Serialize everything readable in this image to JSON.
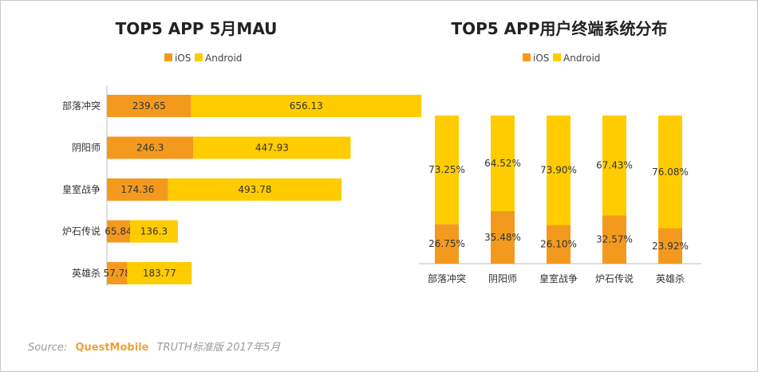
{
  "colors": {
    "ios": "#f39a1e",
    "android": "#ffcc00"
  },
  "chart_data": [
    {
      "type": "bar",
      "orientation": "horizontal",
      "stacked": true,
      "title": "TOP5 APP 5月MAU",
      "legend": [
        "iOS",
        "Android"
      ],
      "legend_position": "top",
      "categories": [
        "部落冲突",
        "阴阳师",
        "皇室战争",
        "炉石传说",
        "英雄杀"
      ],
      "series": [
        {
          "name": "iOS",
          "values": [
            239.65,
            246.3,
            174.36,
            65.84,
            57.78
          ],
          "labels": [
            "239.65",
            "246.3",
            "174.36",
            "65.84",
            "57.78"
          ]
        },
        {
          "name": "Android",
          "values": [
            656.13,
            447.93,
            493.78,
            136.3,
            183.77
          ],
          "labels": [
            "656.13",
            "447.93",
            "493.78",
            "136.3",
            "183.77"
          ]
        }
      ],
      "xlim": [
        0,
        1000
      ],
      "grid": false
    },
    {
      "type": "bar",
      "orientation": "vertical",
      "stacked": true,
      "percent": true,
      "title": "TOP5 APP用户终端系统分布",
      "legend": [
        "iOS",
        "Android"
      ],
      "legend_position": "top",
      "categories": [
        "部落冲突",
        "阴阳师",
        "皇室战争",
        "炉石传说",
        "英雄杀"
      ],
      "series": [
        {
          "name": "iOS",
          "values": [
            26.75,
            35.48,
            26.1,
            32.57,
            23.92
          ],
          "labels": [
            "26.75%",
            "35.48%",
            "26.10%",
            "32.57%",
            "23.92%"
          ]
        },
        {
          "name": "Android",
          "values": [
            73.25,
            64.52,
            73.9,
            67.43,
            76.08
          ],
          "labels": [
            "73.25%",
            "64.52%",
            "73.90%",
            "67.43%",
            "76.08%"
          ]
        }
      ],
      "ylim": [
        0,
        100
      ],
      "grid": false
    }
  ],
  "source": {
    "label": "Source:",
    "brand": "QuestMobile",
    "text": "TRUTH标准版 2017年5月"
  }
}
